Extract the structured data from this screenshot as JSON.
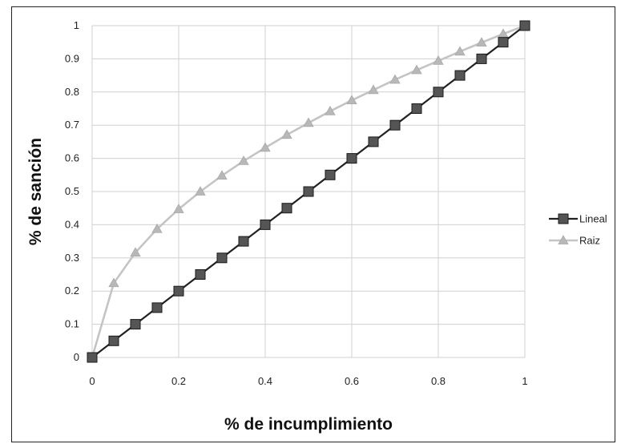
{
  "chart_data": {
    "type": "line",
    "title": "",
    "xlabel": "% de incumplimiento",
    "ylabel": "% de sanción",
    "xlim": [
      0,
      1
    ],
    "ylim": [
      0,
      1
    ],
    "x_ticks": [
      "0",
      "0.2",
      "0.4",
      "0.6",
      "0.8",
      "1"
    ],
    "y_ticks": [
      "0",
      "0.1",
      "0.2",
      "0.3",
      "0.4",
      "0.5",
      "0.6",
      "0.7",
      "0.8",
      "0.9",
      "1"
    ],
    "grid": true,
    "legend_position": "right",
    "x": [
      0,
      0.05,
      0.1,
      0.15,
      0.2,
      0.25,
      0.3,
      0.35,
      0.4,
      0.45,
      0.5,
      0.55,
      0.6,
      0.65,
      0.7,
      0.75,
      0.8,
      0.85,
      0.9,
      0.95,
      1
    ],
    "series": [
      {
        "name": "Lineal",
        "marker": "square",
        "color": "#222222",
        "marker_color": "#555555",
        "values": [
          0,
          0.05,
          0.1,
          0.15,
          0.2,
          0.25,
          0.3,
          0.35,
          0.4,
          0.45,
          0.5,
          0.55,
          0.6,
          0.65,
          0.7,
          0.75,
          0.8,
          0.85,
          0.9,
          0.95,
          1
        ]
      },
      {
        "name": "Raiz",
        "marker": "triangle",
        "color": "#c4c4c4",
        "marker_color": "#b8b8b8",
        "values": [
          0,
          0.224,
          0.316,
          0.387,
          0.447,
          0.5,
          0.548,
          0.592,
          0.632,
          0.671,
          0.707,
          0.742,
          0.775,
          0.806,
          0.837,
          0.866,
          0.894,
          0.922,
          0.949,
          0.975,
          1
        ]
      }
    ]
  }
}
